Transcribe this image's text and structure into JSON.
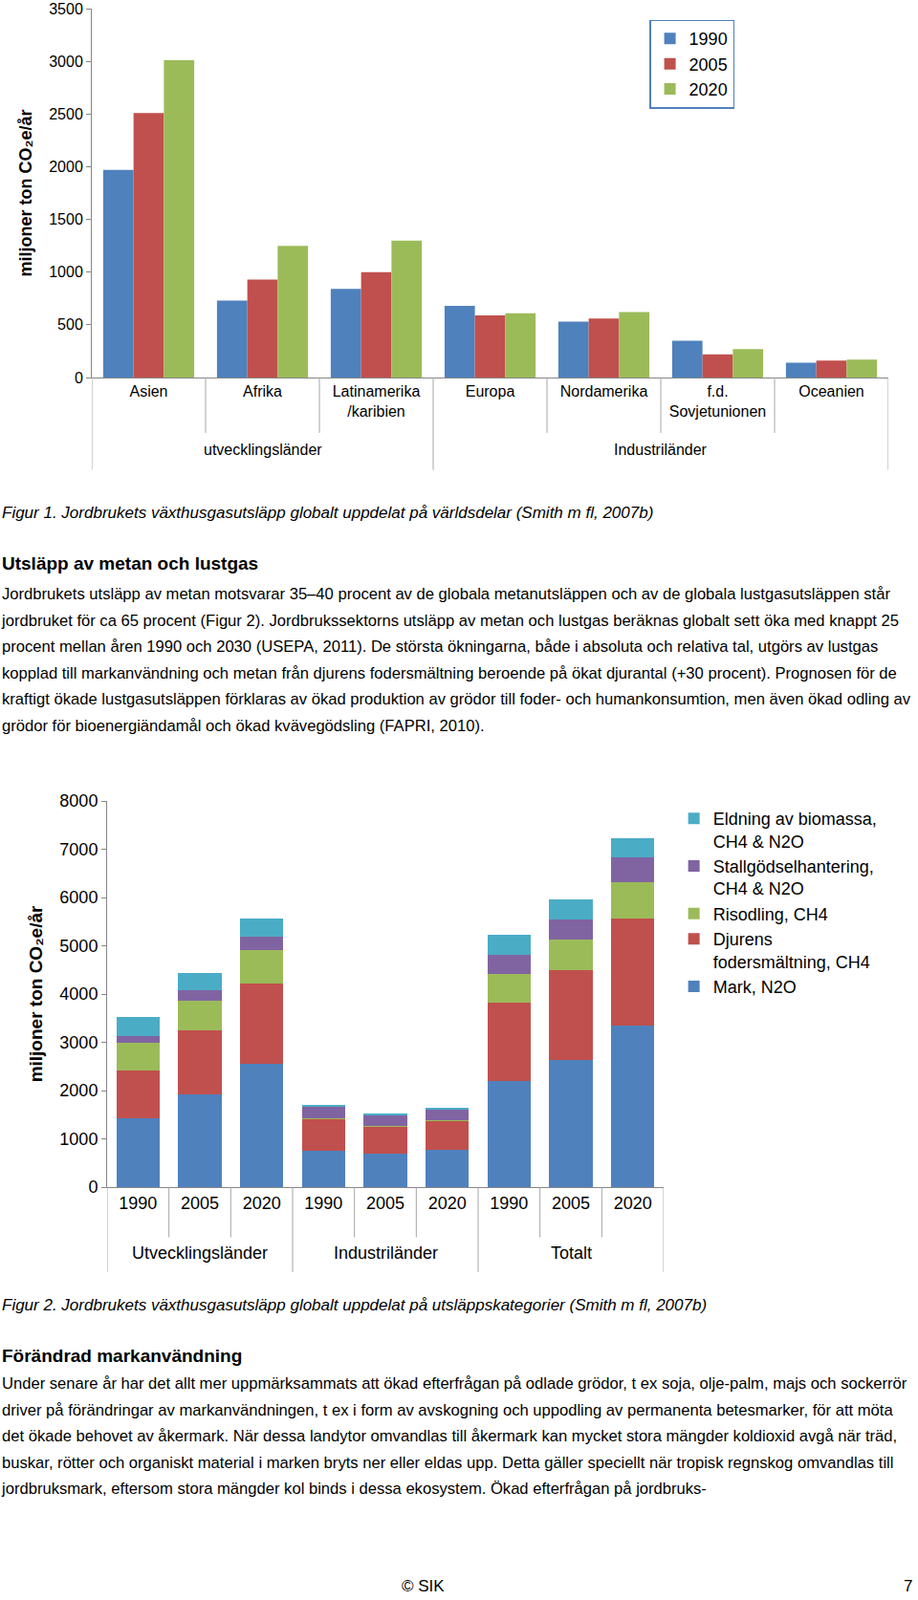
{
  "chart_data": [
    {
      "type": "bar",
      "y_label": "miljoner ton CO₂e/år",
      "categories": [
        "Asien",
        "Afrika",
        "Latinamerika\n/karibien",
        "Europa",
        "Nordamerika",
        "f.d.\nSovjetunionen",
        "Oceanien"
      ],
      "groups": [
        {
          "label": "utvecklingsländer",
          "size": 3
        },
        {
          "label": "Industriländer",
          "size": 4
        }
      ],
      "series": [
        {
          "name": "1990",
          "color": "#4f81bd",
          "values": [
            1970,
            730,
            840,
            680,
            530,
            350,
            140
          ]
        },
        {
          "name": "2005",
          "color": "#c0504d",
          "values": [
            2510,
            930,
            1000,
            590,
            560,
            220,
            160
          ]
        },
        {
          "name": "2020",
          "color": "#9bbb59",
          "values": [
            3010,
            1250,
            1300,
            610,
            620,
            270,
            170
          ]
        }
      ],
      "ylim": [
        0,
        3500
      ],
      "yticks": [
        0,
        500,
        1000,
        1500,
        2000,
        2500,
        3000,
        3500
      ],
      "grid": false,
      "legend": "top-right"
    },
    {
      "type": "bar",
      "stacked": true,
      "y_label": "miljoner ton CO₂e/år",
      "categories": [
        "1990",
        "2005",
        "2020",
        "1990",
        "2005",
        "2020",
        "1990",
        "2005",
        "2020"
      ],
      "groups": [
        {
          "label": "Utvecklingsländer",
          "size": 3
        },
        {
          "label": "Industriländer",
          "size": 3
        },
        {
          "label": "Totalt",
          "size": 3
        }
      ],
      "series": [
        {
          "name": "Mark, N2O",
          "color": "#4f81bd",
          "values": [
            1430,
            1930,
            2550,
            760,
            700,
            780,
            2200,
            2640,
            3340
          ]
        },
        {
          "name": "Djurens\nfodersmältning, CH4",
          "color": "#c0504d",
          "values": [
            990,
            1310,
            1660,
            640,
            550,
            580,
            1620,
            1860,
            2220
          ]
        },
        {
          "name": "Risodling, CH4",
          "color": "#9bbb59",
          "values": [
            570,
            620,
            710,
            20,
            20,
            20,
            600,
            630,
            760
          ]
        },
        {
          "name": "Stallgödselhantering,\nCH4 & N2O",
          "color": "#8064a2",
          "values": [
            130,
            210,
            260,
            240,
            210,
            220,
            390,
            420,
            510
          ]
        },
        {
          "name": "Eldning av biomassa,\nCH4 & N2O",
          "color": "#4bacc6",
          "values": [
            400,
            360,
            380,
            40,
            40,
            50,
            410,
            410,
            400
          ]
        }
      ],
      "ylim": [
        0,
        8000
      ],
      "yticks": [
        0,
        1000,
        2000,
        3000,
        4000,
        5000,
        6000,
        7000,
        8000
      ],
      "grid": false,
      "legend": "right"
    }
  ],
  "document": {
    "figure1_caption": "Figur 1. Jordbrukets växthusgasutsläpp globalt uppdelat på världsdelar (Smith m fl, 2007b)",
    "heading1": "Utsläpp av metan och lustgas",
    "paragraph1": "Jordbrukets utsläpp av metan motsvarar 35–40 procent av de globala metanutsläppen och av de globala lustgasutsläppen står jordbruket för ca 65 procent (Figur 2). Jordbrukssektorns utsläpp av metan och lustgas beräknas globalt sett öka med knappt 25 procent mellan åren 1990 och 2030 (USEPA, 2011). De största ökningarna, både i absoluta och relativa tal, utgörs av lustgas kopplad till markanvändning och metan från djurens fodersmältning beroende på ökat djurantal (+30 procent). Prognosen för de kraftigt ökade lustgasutsläppen förklaras av ökad produktion av grödor till foder- och humankonsumtion, men även ökad odling av grödor för bioenergiändamål och ökad kvävegödsling (FAPRI, 2010).",
    "figure2_caption": "Figur 2. Jordbrukets växthusgasutsläpp globalt uppdelat på utsläppskategorier (Smith m fl, 2007b)",
    "heading2": "Förändrad markanvändning",
    "paragraph2": "Under senare år har det allt mer uppmärksammats att ökad efterfrågan på odlade grödor, t ex soja, olje-palm, majs och sockerrör driver på förändringar av markanvändningen, t ex i form av avskogning och uppodling av permanenta betesmarker, för att möta det ökade behovet av åkermark. När dessa landytor omvandlas till åkermark kan mycket stora mängder koldioxid avgå när träd, buskar, rötter och organiskt material i marken bryts ner eller eldas upp. Detta gäller speciellt när tropisk regnskog omvandlas till jordbruksmark, eftersom stora mängder kol binds i dessa ekosystem. Ökad efterfrågan på jordbruks-",
    "footer": {
      "left": "© SIK",
      "page": 7
    }
  }
}
